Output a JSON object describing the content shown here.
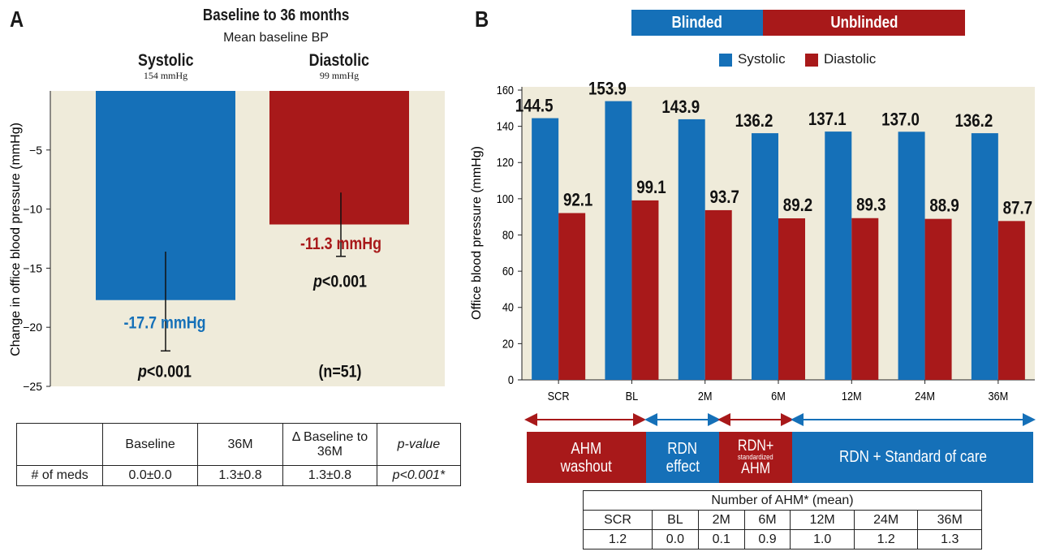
{
  "colors": {
    "systolic": "#1570b8",
    "diastolic": "#a8191a",
    "bg_a": "#efebda"
  },
  "panel_a": {
    "letter": "A",
    "title": "Baseline to 36 months",
    "subtitle": "Mean baseline BP",
    "col1_name": "Systolic",
    "col1_base": "154 mmHg",
    "col2_name": "Diastolic",
    "col2_base": "99 mmHg",
    "ylabel": "Change in office blood pressure (mmHg)",
    "n_label": "(n=51)"
  },
  "chart_data": [
    {
      "type": "bar",
      "title": "Baseline to 36 months",
      "ylabel": "Change in office blood pressure (mmHg)",
      "ylim": [
        -25,
        0
      ],
      "yticks": [
        "−5",
        "−10",
        "−15",
        "−20",
        "−25"
      ],
      "categories": [
        "Systolic",
        "Diastolic"
      ],
      "values": [
        -17.7,
        -11.3
      ],
      "error_bars": [
        [
          -22.0,
          -13.6
        ],
        [
          -14.0,
          -8.6
        ]
      ],
      "value_labels": [
        "-17.7 mmHg",
        "-11.3 mmHg"
      ],
      "p_values": [
        "p<0.001",
        "p<0.001"
      ]
    },
    {
      "type": "bar",
      "ylabel": "Office blood pressure (mmHg)",
      "ylim": [
        0,
        160
      ],
      "yticks": [
        "0",
        "20",
        "40",
        "60",
        "80",
        "100",
        "120",
        "140",
        "160"
      ],
      "categories": [
        "SCR",
        "BL",
        "2M",
        "6M",
        "12M",
        "24M",
        "36M"
      ],
      "legend_position": "top",
      "series": [
        {
          "name": "Systolic",
          "values": [
            144.5,
            153.9,
            143.9,
            136.2,
            137.1,
            137.0,
            136.2
          ],
          "labels": [
            "144.5",
            "153.9",
            "143.9",
            "136.2",
            "137.1",
            "137.0",
            "136.2"
          ]
        },
        {
          "name": "Diastolic",
          "values": [
            92.1,
            99.1,
            93.7,
            89.2,
            89.3,
            88.9,
            87.7
          ],
          "labels": [
            "92.1",
            "99.1",
            "93.7",
            "89.2",
            "89.3",
            "88.9",
            "87.7"
          ]
        }
      ]
    }
  ],
  "meds_table": {
    "headers": [
      "",
      "Baseline",
      "36M",
      "Δ Baseline to 36M",
      "p-value"
    ],
    "row_label": "# of meds",
    "values": [
      "0.0±0.0",
      "1.3±0.8",
      "1.3±0.8",
      "p<0.001*"
    ]
  },
  "panel_b": {
    "letter": "B",
    "blinded": "Blinded",
    "unblinded": "Unblinded",
    "legend_systolic": "Systolic",
    "legend_diastolic": "Diastolic",
    "phase_washout_1": "AHM",
    "phase_washout_2": "washout",
    "phase_rdn_1": "RDN",
    "phase_rdn_2": "effect",
    "phase_std_1": "RDN+",
    "phase_std_2": "standardized",
    "phase_std_3": "AHM",
    "phase_care": "RDN + Standard of care"
  },
  "ahm_table": {
    "title": "Number of AHM* (mean)",
    "headers": [
      "SCR",
      "BL",
      "2M",
      "6M",
      "12M",
      "24M",
      "36M"
    ],
    "values": [
      "1.2",
      "0.0",
      "0.1",
      "0.9",
      "1.0",
      "1.2",
      "1.3"
    ]
  }
}
